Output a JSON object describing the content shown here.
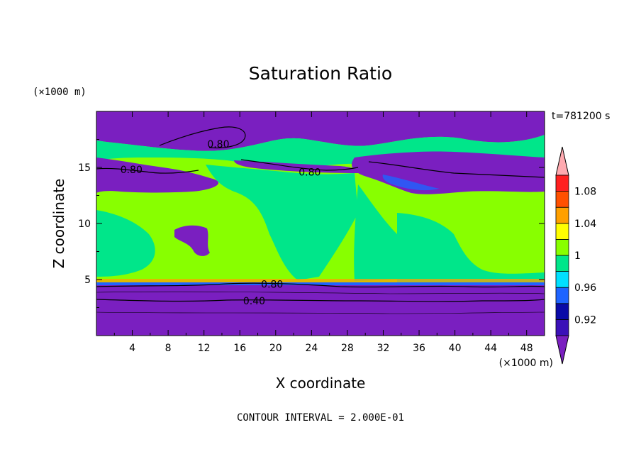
{
  "chart_data": {
    "type": "heatmap",
    "title": "Saturation Ratio",
    "xlabel": "X coordinate",
    "ylabel": "Z coordinate",
    "x_unit": "(×1000 m)",
    "y_unit": "(×1000 m)",
    "time_label": "t=781200 s",
    "footer": "CONTOUR INTERVAL = 2.000E-01",
    "xlim": [
      0,
      50
    ],
    "ylim": [
      0,
      20
    ],
    "x_ticks": [
      4,
      8,
      12,
      16,
      20,
      24,
      28,
      32,
      36,
      40,
      44,
      48
    ],
    "y_ticks": [
      5,
      10,
      15
    ],
    "contour_labels": [
      {
        "text": "0.80",
        "x": 13.6,
        "y": 17.1
      },
      {
        "text": "0.80",
        "x": 3.9,
        "y": 14.8
      },
      {
        "text": "0.80",
        "x": 23.8,
        "y": 14.6
      },
      {
        "text": "0.80",
        "x": 19.6,
        "y": 4.6
      },
      {
        "text": "0.40",
        "x": 17.6,
        "y": 3.1
      }
    ],
    "colorbar": {
      "levels": [
        0.92,
        0.94,
        0.96,
        0.98,
        1.0,
        1.02,
        1.04,
        1.06,
        1.08,
        1.1
      ],
      "tick_labels": [
        "0.92",
        "0.96",
        "1",
        "1.04",
        "1.08"
      ],
      "tick_values": [
        0.92,
        0.96,
        1.0,
        1.04,
        1.08
      ],
      "colors": [
        "#7a1fc0",
        "#3b10b8",
        "#0a0aa8",
        "#1e64ff",
        "#00e0ff",
        "#00e68a",
        "#88ff00",
        "#ffff00",
        "#ffa000",
        "#ff5000",
        "#ff2020",
        "#ffaab0"
      ]
    },
    "regions": [
      {
        "z_range": [
          0,
          4.7
        ],
        "class": "< 0.92",
        "color": "#7a1fc0"
      },
      {
        "z_range": [
          4.7,
          5.2
        ],
        "class": "1.04 - 1.08 (thin layer)",
        "color": "#ffa000"
      },
      {
        "z_range": [
          5.2,
          13.0
        ],
        "class": "0.98 - 1.02",
        "color": "#88ff00"
      },
      {
        "z_range": [
          13.0,
          15.5
        ],
        "class": "< 0.92",
        "color": "#7a1fc0"
      },
      {
        "z_range": [
          15.5,
          17.0
        ],
        "class": "0.98 - 1.00",
        "color": "#00e68a"
      },
      {
        "z_range": [
          17.0,
          20.0
        ],
        "class": "< 0.92",
        "color": "#7a1fc0"
      }
    ]
  }
}
